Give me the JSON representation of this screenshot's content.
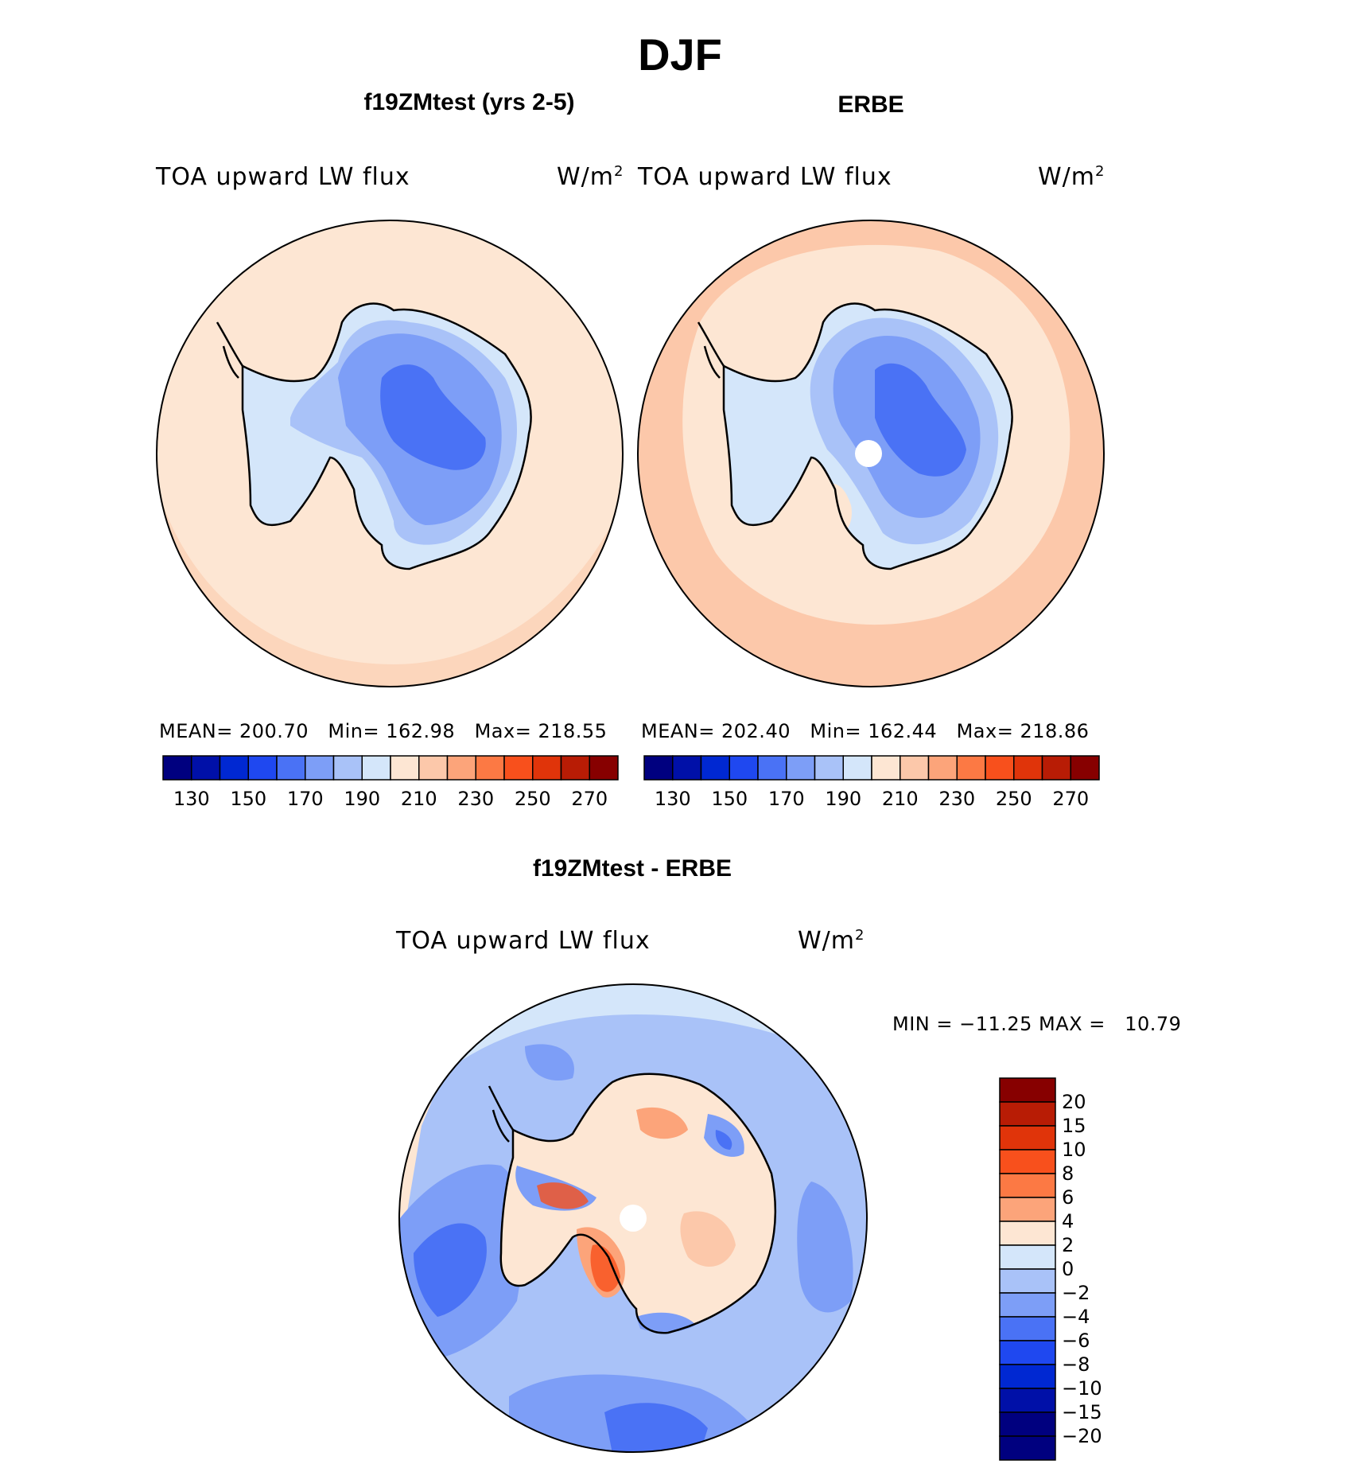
{
  "page": {
    "title": "DJF"
  },
  "panels": {
    "model": {
      "title": "f19ZMtest (yrs 2-5)",
      "variable": "TOA upward LW flux",
      "units": "W/m",
      "units_exp": "2",
      "mean_label": "MEAN=",
      "mean": "200.70",
      "min_label": "Min=",
      "min": "162.98",
      "max_label": "Max=",
      "max": "218.55"
    },
    "obs": {
      "title": "ERBE",
      "variable": "TOA upward LW flux",
      "units": "W/m",
      "units_exp": "2",
      "mean_label": "MEAN=",
      "mean": "202.40",
      "min_label": "Min=",
      "min": "162.44",
      "max_label": "Max=",
      "max": "218.86"
    },
    "diff": {
      "title": "f19ZMtest - ERBE",
      "variable": "TOA upward LW flux",
      "units": "W/m",
      "units_exp": "2",
      "minmax_text": "MIN = −11.25 MAX =   10.79"
    }
  },
  "colorbars": {
    "abs": {
      "colors": [
        "#00007f",
        "#0010a8",
        "#0028d2",
        "#1f48f0",
        "#4a72f5",
        "#7d9ef7",
        "#a9c2f8",
        "#d4e6fa",
        "#fde6d3",
        "#fcc8aa",
        "#fca47a",
        "#fc7944",
        "#f8501c",
        "#e0340a",
        "#b81c05",
        "#870000"
      ],
      "ticks": [
        "130",
        "150",
        "170",
        "190",
        "210",
        "230",
        "250",
        "270"
      ]
    },
    "diff": {
      "colors": [
        "#870000",
        "#b81c05",
        "#e0340a",
        "#f8501c",
        "#fc7944",
        "#fca47a",
        "#fde6d3",
        "#d4e6fa",
        "#a9c2f8",
        "#7d9ef7",
        "#4a72f5",
        "#1f48f0",
        "#0028d2",
        "#0010a8",
        "#00007f"
      ],
      "ticks": [
        "20",
        "15",
        "10",
        "8",
        "6",
        "4",
        "2",
        "0",
        "−2",
        "−4",
        "−6",
        "−8",
        "−10",
        "−15",
        "−20"
      ]
    }
  },
  "colors": {
    "deep_blue": "#4a72f5",
    "mid_blue": "#7d9ef7",
    "light_blue": "#a9c2f8",
    "pale_blue": "#d4e6fa",
    "pale_orange": "#fde6d3",
    "light_orange": "#fcc8aa",
    "orange": "#fca47a",
    "red_orange": "#f8501c"
  }
}
